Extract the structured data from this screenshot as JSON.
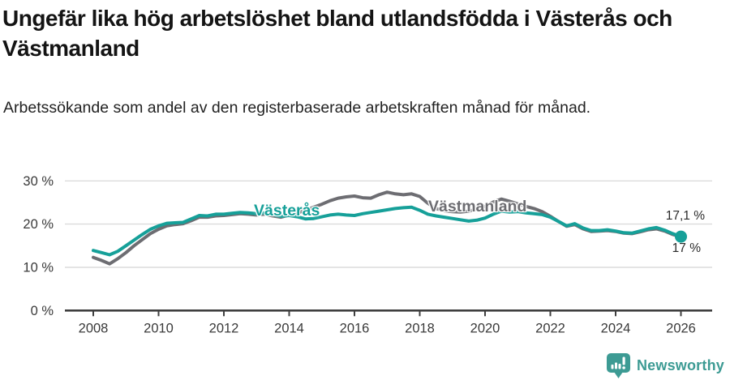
{
  "header": {
    "title": "Ungefär lika hög arbetslöshet bland utlandsfödda i Västerås och Västmanland",
    "subtitle": "Arbetssökande som andel av den registerbaserade arbetskraften månad för månad."
  },
  "chart_data": {
    "type": "line",
    "title": "Ungefär lika hög arbetslöshet bland utlandsfödda i Västerås och Västmanland",
    "subtitle": "Arbetssökande som andel av den registerbaserade arbetskraften månad för månad.",
    "xlabel": "",
    "ylabel": "",
    "ylim": [
      0,
      30
    ],
    "grid": "horizontal",
    "legend_position": "inline-labels",
    "yticks": [
      {
        "value": 0,
        "label": "0 %"
      },
      {
        "value": 10,
        "label": "10 %"
      },
      {
        "value": 20,
        "label": "20 %"
      },
      {
        "value": 30,
        "label": "30 %"
      }
    ],
    "xticks": [
      2008,
      2010,
      2012,
      2014,
      2016,
      2018,
      2020,
      2022,
      2024,
      2026
    ],
    "x": [
      2008.0,
      2008.25,
      2008.5,
      2008.75,
      2009.0,
      2009.25,
      2009.5,
      2009.75,
      2010.0,
      2010.25,
      2010.5,
      2010.75,
      2011.0,
      2011.25,
      2011.5,
      2011.75,
      2012.0,
      2012.25,
      2012.5,
      2012.75,
      2013.0,
      2013.25,
      2013.5,
      2013.75,
      2014.0,
      2014.25,
      2014.5,
      2014.75,
      2015.0,
      2015.25,
      2015.5,
      2015.75,
      2016.0,
      2016.25,
      2016.5,
      2016.75,
      2017.0,
      2017.25,
      2017.5,
      2017.75,
      2018.0,
      2018.25,
      2018.5,
      2018.75,
      2019.0,
      2019.25,
      2019.5,
      2019.75,
      2020.0,
      2020.25,
      2020.5,
      2020.75,
      2021.0,
      2021.25,
      2021.5,
      2021.75,
      2022.0,
      2022.25,
      2022.5,
      2022.75,
      2023.0,
      2023.25,
      2023.5,
      2023.75,
      2024.0,
      2024.25,
      2024.5,
      2024.75,
      2025.0,
      2025.25,
      2025.5,
      2025.75,
      2026.0
    ],
    "series": [
      {
        "name": "Västerås",
        "color": "#16a099",
        "end_label": "17,1 %",
        "end_value": 17.1,
        "values": [
          13.9,
          13.4,
          12.9,
          13.7,
          15.0,
          16.3,
          17.6,
          18.8,
          19.6,
          20.2,
          20.3,
          20.4,
          21.2,
          22.0,
          21.9,
          22.3,
          22.3,
          22.5,
          22.7,
          22.6,
          22.4,
          22.6,
          22.2,
          21.8,
          22.0,
          21.7,
          21.2,
          21.3,
          21.7,
          22.1,
          22.3,
          22.1,
          22.0,
          22.4,
          22.7,
          23.0,
          23.3,
          23.6,
          23.8,
          23.9,
          23.2,
          22.3,
          21.9,
          21.6,
          21.3,
          21.0,
          20.7,
          20.9,
          21.4,
          22.3,
          23.0,
          22.8,
          22.9,
          22.6,
          22.4,
          22.2,
          21.6,
          20.6,
          19.6,
          20.1,
          19.1,
          18.5,
          18.5,
          18.7,
          18.4,
          18.0,
          17.9,
          18.4,
          18.9,
          19.2,
          18.6,
          17.8,
          17.1
        ]
      },
      {
        "name": "Västmanland",
        "color": "#6d6d72",
        "end_label": "17 %",
        "end_value": 17.0,
        "values": [
          12.3,
          11.6,
          10.8,
          12.0,
          13.4,
          15.0,
          16.4,
          17.8,
          18.8,
          19.6,
          19.9,
          20.1,
          20.8,
          21.6,
          21.6,
          21.9,
          22.0,
          22.2,
          22.4,
          22.3,
          22.1,
          22.3,
          21.9,
          21.6,
          22.1,
          22.6,
          23.2,
          23.9,
          24.6,
          25.4,
          26.0,
          26.3,
          26.5,
          26.1,
          26.0,
          26.8,
          27.4,
          27.0,
          26.8,
          27.0,
          26.4,
          24.8,
          23.6,
          23.1,
          22.9,
          22.8,
          23.0,
          23.4,
          24.1,
          25.1,
          25.8,
          25.3,
          24.7,
          24.1,
          23.6,
          22.9,
          21.8,
          20.6,
          19.5,
          19.9,
          18.9,
          18.3,
          18.4,
          18.5,
          18.3,
          17.9,
          17.8,
          18.2,
          18.7,
          18.9,
          18.4,
          17.6,
          17.0
        ]
      }
    ],
    "colors": {
      "grid": "#dcdcdc",
      "axis": "#3f3f3f",
      "tick_text": "#3a3a3a"
    }
  },
  "footer": {
    "brand": "Newsworthy",
    "logo_color": "#3d9b94"
  }
}
